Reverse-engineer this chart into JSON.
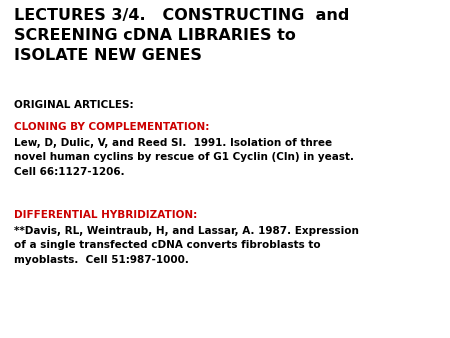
{
  "bg_color": "#ffffff",
  "title_line1": "LECTURES 3/4.   CONSTRUCTING  and",
  "title_line2": "SCREENING cDNA LIBRARIES to",
  "title_line3": "ISOLATE NEW GENES",
  "title_color": "#000000",
  "title_fontsize": 11.5,
  "section1_label": "ORIGINAL ARTICLES:",
  "section1_color": "#000000",
  "section1_fontsize": 7.5,
  "section2_label": "CLONING BY COMPLEMENTATION:",
  "section2_color": "#cc0000",
  "section2_fontsize": 7.5,
  "section2_body": "Lew, D, Dulic, V, and Reed SI.  1991. Isolation of three\nnovel human cyclins by rescue of G1 Cyclin (Cln) in yeast.\nCell 66:1127-1206.",
  "section2_body_color": "#000000",
  "section2_body_fontsize": 7.5,
  "section3_label": "DIFFERENTIAL HYBRIDIZATION:",
  "section3_color": "#cc0000",
  "section3_fontsize": 7.5,
  "section3_body": "**Davis, RL, Weintraub, H, and Lassar, A. 1987. Expression\nof a single transfected cDNA converts fibroblasts to\nmyoblasts.  Cell 51:987-1000.",
  "section3_body_color": "#000000",
  "section3_body_fontsize": 7.5,
  "fig_width": 4.5,
  "fig_height": 3.38,
  "fig_dpi": 100
}
